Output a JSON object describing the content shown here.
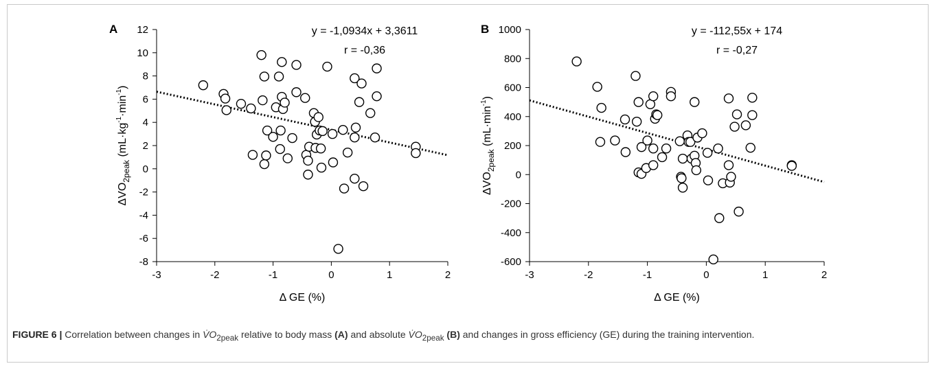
{
  "colors": {
    "frame": "#c9c9c9",
    "marker_fill": "#ffffff",
    "marker_stroke": "#000000",
    "trendline": "#000000",
    "caption_text": "#333333"
  },
  "chart_data": [
    {
      "type": "scatter",
      "panel_label": "A",
      "xlabel": "Δ GE (%)",
      "ylabel_parts": [
        "ΔVO",
        "2peak",
        " (mL·kg",
        "-1",
        "·min",
        "-1",
        ")"
      ],
      "xlim": [
        -3,
        2
      ],
      "ylim": [
        -8,
        12
      ],
      "xticks": [
        -3,
        -2,
        -1,
        0,
        1,
        2
      ],
      "yticks": [
        -8,
        -6,
        -4,
        -2,
        0,
        2,
        4,
        6,
        8,
        10,
        12
      ],
      "grid": false,
      "equation": "y = -1,0934x + 3,3611",
      "r_text": "r = -0,36",
      "trendline": {
        "slope": -1.0934,
        "intercept": 3.3611,
        "style": "dotted"
      },
      "points": [
        [
          -2.2,
          7.2
        ],
        [
          -1.85,
          6.45
        ],
        [
          -1.82,
          6.05
        ],
        [
          -1.8,
          5.05
        ],
        [
          -1.55,
          5.6
        ],
        [
          -1.38,
          5.2
        ],
        [
          -1.35,
          1.2
        ],
        [
          -1.2,
          9.8
        ],
        [
          -1.18,
          5.9
        ],
        [
          -1.15,
          7.95
        ],
        [
          -1.15,
          0.4
        ],
        [
          -1.12,
          1.15
        ],
        [
          -1.1,
          3.3
        ],
        [
          -1.0,
          2.75
        ],
        [
          -0.95,
          5.3
        ],
        [
          -0.9,
          7.95
        ],
        [
          -0.88,
          1.7
        ],
        [
          -0.87,
          3.3
        ],
        [
          -0.85,
          9.2
        ],
        [
          -0.85,
          6.2
        ],
        [
          -0.83,
          5.15
        ],
        [
          -0.8,
          5.7
        ],
        [
          -0.75,
          0.9
        ],
        [
          -0.67,
          2.65
        ],
        [
          -0.6,
          8.95
        ],
        [
          -0.6,
          6.6
        ],
        [
          -0.45,
          6.1
        ],
        [
          -0.43,
          1.2
        ],
        [
          -0.4,
          0.7
        ],
        [
          -0.4,
          -0.5
        ],
        [
          -0.38,
          1.9
        ],
        [
          -0.3,
          4.8
        ],
        [
          -0.28,
          4.05
        ],
        [
          -0.27,
          1.8
        ],
        [
          -0.25,
          2.95
        ],
        [
          -0.22,
          4.45
        ],
        [
          -0.2,
          3.3
        ],
        [
          -0.18,
          1.75
        ],
        [
          -0.17,
          0.1
        ],
        [
          -0.15,
          3.25
        ],
        [
          -0.07,
          8.8
        ],
        [
          0.02,
          3.0
        ],
        [
          0.03,
          0.55
        ],
        [
          0.12,
          -6.9
        ],
        [
          0.2,
          3.35
        ],
        [
          0.22,
          -1.7
        ],
        [
          0.28,
          1.4
        ],
        [
          0.4,
          7.8
        ],
        [
          0.4,
          2.7
        ],
        [
          0.4,
          -0.85
        ],
        [
          0.42,
          3.55
        ],
        [
          0.48,
          5.75
        ],
        [
          0.52,
          7.35
        ],
        [
          0.55,
          -1.5
        ],
        [
          0.67,
          4.8
        ],
        [
          0.75,
          2.7
        ],
        [
          0.78,
          8.65
        ],
        [
          0.78,
          6.25
        ],
        [
          1.45,
          1.9
        ],
        [
          1.45,
          1.35
        ]
      ]
    },
    {
      "type": "scatter",
      "panel_label": "B",
      "xlabel": "Δ GE (%)",
      "ylabel_parts": [
        "ΔVO",
        "2peak",
        " (mL·min",
        "-1",
        ")"
      ],
      "xlim": [
        -3,
        2
      ],
      "ylim": [
        -600,
        1000
      ],
      "xticks": [
        -3,
        -2,
        -1,
        0,
        1,
        2
      ],
      "yticks": [
        -600,
        -400,
        -200,
        0,
        200,
        400,
        600,
        800,
        1000
      ],
      "grid": false,
      "equation": "y = -112,55x + 174",
      "r_text": "r = -0,27",
      "trendline": {
        "slope": -112.55,
        "intercept": 174,
        "style": "dotted"
      },
      "points": [
        [
          -2.2,
          780
        ],
        [
          -1.85,
          605
        ],
        [
          -1.78,
          460
        ],
        [
          -1.8,
          225
        ],
        [
          -1.55,
          235
        ],
        [
          -1.38,
          380
        ],
        [
          -1.37,
          155
        ],
        [
          -1.2,
          680
        ],
        [
          -1.18,
          365
        ],
        [
          -1.15,
          500
        ],
        [
          -1.15,
          15
        ],
        [
          -1.1,
          5
        ],
        [
          -1.1,
          190
        ],
        [
          -1.02,
          45
        ],
        [
          -1.0,
          235
        ],
        [
          -0.95,
          485
        ],
        [
          -0.9,
          540
        ],
        [
          -0.9,
          180
        ],
        [
          -0.9,
          65
        ],
        [
          -0.87,
          385
        ],
        [
          -0.85,
          415
        ],
        [
          -0.83,
          410
        ],
        [
          -0.75,
          120
        ],
        [
          -0.68,
          180
        ],
        [
          -0.6,
          570
        ],
        [
          -0.6,
          540
        ],
        [
          -0.45,
          230
        ],
        [
          -0.43,
          -15
        ],
        [
          -0.42,
          -25
        ],
        [
          -0.4,
          -90
        ],
        [
          -0.4,
          110
        ],
        [
          -0.32,
          270
        ],
        [
          -0.3,
          225
        ],
        [
          -0.27,
          225
        ],
        [
          -0.25,
          110
        ],
        [
          -0.2,
          500
        ],
        [
          -0.2,
          130
        ],
        [
          -0.18,
          80
        ],
        [
          -0.17,
          30
        ],
        [
          -0.15,
          255
        ],
        [
          -0.07,
          285
        ],
        [
          0.02,
          150
        ],
        [
          0.03,
          -40
        ],
        [
          0.12,
          -585
        ],
        [
          0.2,
          180
        ],
        [
          0.22,
          -300
        ],
        [
          0.28,
          -60
        ],
        [
          0.38,
          525
        ],
        [
          0.38,
          65
        ],
        [
          0.4,
          -55
        ],
        [
          0.42,
          -15
        ],
        [
          0.48,
          330
        ],
        [
          0.52,
          415
        ],
        [
          0.55,
          -255
        ],
        [
          0.67,
          340
        ],
        [
          0.75,
          185
        ],
        [
          0.78,
          530
        ],
        [
          0.78,
          410
        ],
        [
          1.45,
          65
        ],
        [
          1.45,
          60
        ]
      ]
    }
  ],
  "caption": {
    "label": "FIGURE 6 |",
    "text_parts": [
      "Correlation between changes in ",
      "V̇O",
      "2peak",
      " relative to body mass ",
      "(A)",
      " and absolute ",
      "V̇O",
      "2peak",
      " ",
      "(B)",
      " and changes in gross efficiency (GE) during the training intervention."
    ]
  }
}
